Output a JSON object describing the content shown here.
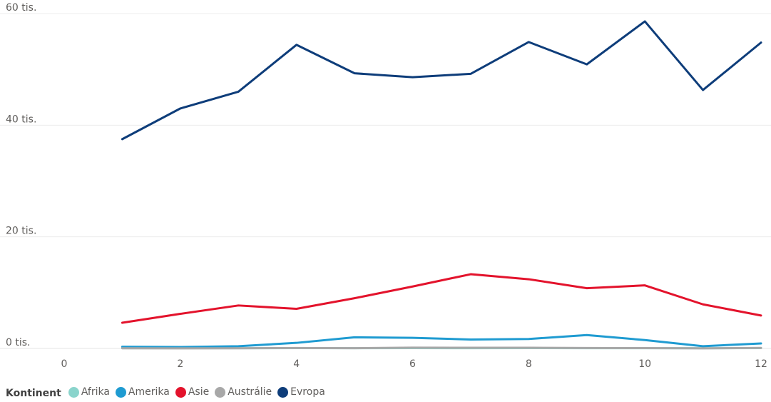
{
  "chart_data": {
    "type": "line",
    "x": [
      1,
      2,
      3,
      4,
      5,
      6,
      7,
      8,
      9,
      10,
      11,
      12
    ],
    "x_ticks": [
      0,
      2,
      4,
      6,
      8,
      10,
      12
    ],
    "xlim": [
      0,
      12
    ],
    "ylim": [
      0,
      60000
    ],
    "y_ticks": [
      {
        "value": 0,
        "label": "0 tis."
      },
      {
        "value": 20000,
        "label": "20 tis."
      },
      {
        "value": 40000,
        "label": "40 tis."
      },
      {
        "value": 60000,
        "label": "60 tis."
      }
    ],
    "grid": true,
    "legend_position": "bottom-left",
    "legend_title": "Kontinent",
    "series": [
      {
        "name": "Afrika",
        "color": "#8ad4cc",
        "values": [
          50,
          40,
          40,
          60,
          50,
          60,
          50,
          60,
          50,
          40,
          40,
          60
        ]
      },
      {
        "name": "Amerika",
        "color": "#1f9bd1",
        "values": [
          300,
          250,
          400,
          1000,
          2000,
          1900,
          1600,
          1700,
          2400,
          1500,
          400,
          900
        ]
      },
      {
        "name": "Asie",
        "color": "#e3132c",
        "values": [
          4600,
          6200,
          7700,
          7100,
          9000,
          11100,
          13300,
          12400,
          10800,
          11300,
          7900,
          5900
        ]
      },
      {
        "name": "Austrálie",
        "color": "#a8a8a8",
        "values": [
          30,
          20,
          30,
          80,
          50,
          150,
          120,
          130,
          80,
          60,
          20,
          100
        ]
      },
      {
        "name": "Evropa",
        "color": "#0e3d7a",
        "values": [
          37500,
          43000,
          46000,
          54400,
          49300,
          48600,
          49200,
          54900,
          50900,
          58600,
          46300,
          54800
        ]
      }
    ]
  }
}
